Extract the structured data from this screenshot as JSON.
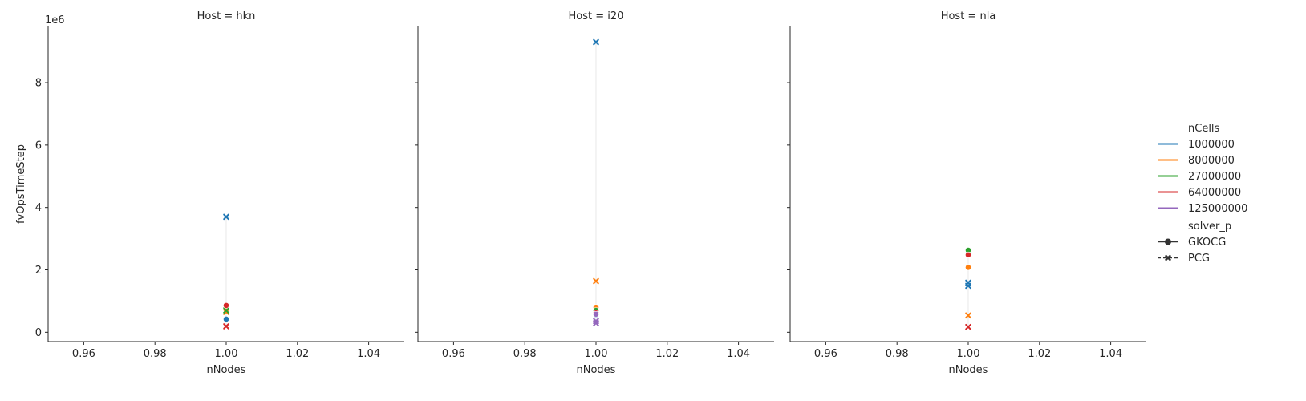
{
  "chart_data": {
    "type": "scatter",
    "x_label": "nNodes",
    "y_label": "fvOpsTimeStep",
    "y_offset_text": "1e6",
    "xlim": [
      0.95,
      1.05
    ],
    "ylim": [
      -300000,
      9800000
    ],
    "x_ticks": [
      0.96,
      0.98,
      1.0,
      1.02,
      1.04
    ],
    "x_tick_labels": [
      "0.96",
      "0.98",
      "1.00",
      "1.02",
      "1.04"
    ],
    "y_ticks": [
      0,
      2000000,
      4000000,
      6000000,
      8000000
    ],
    "y_tick_labels": [
      "0",
      "2",
      "4",
      "6",
      "8"
    ],
    "series_colors": {
      "1000000": "#1f77b4",
      "8000000": "#ff7f0e",
      "27000000": "#2ca02c",
      "64000000": "#d62728",
      "125000000": "#9467bd"
    },
    "panels": [
      {
        "title": "Host = hkn",
        "points": [
          {
            "nCells": "1000000",
            "solver": "PCG",
            "x": 1.0,
            "y": 3700000
          },
          {
            "nCells": "1000000",
            "solver": "GKOCG",
            "x": 1.0,
            "y": 420000
          },
          {
            "nCells": "8000000",
            "solver": "GKOCG",
            "x": 1.0,
            "y": 800000
          },
          {
            "nCells": "8000000",
            "solver": "PCG",
            "x": 1.0,
            "y": 650000
          },
          {
            "nCells": "27000000",
            "solver": "PCG",
            "x": 1.0,
            "y": 700000
          },
          {
            "nCells": "64000000",
            "solver": "GKOCG",
            "x": 1.0,
            "y": 860000
          },
          {
            "nCells": "64000000",
            "solver": "PCG",
            "x": 1.0,
            "y": 190000
          }
        ]
      },
      {
        "title": "Host = i20",
        "points": [
          {
            "nCells": "1000000",
            "solver": "PCG",
            "x": 1.0,
            "y": 9300000
          },
          {
            "nCells": "8000000",
            "solver": "PCG",
            "x": 1.0,
            "y": 1640000
          },
          {
            "nCells": "8000000",
            "solver": "GKOCG",
            "x": 1.0,
            "y": 800000
          },
          {
            "nCells": "27000000",
            "solver": "GKOCG",
            "x": 1.0,
            "y": 700000
          },
          {
            "nCells": "64000000",
            "solver": "GKOCG",
            "x": 1.0,
            "y": 620000
          },
          {
            "nCells": "1000000",
            "solver": "GKOCG",
            "x": 1.0,
            "y": 560000
          },
          {
            "nCells": "125000000",
            "solver": "GKOCG",
            "x": 1.0,
            "y": 580000
          },
          {
            "nCells": "125000000",
            "solver": "PCG",
            "x": 1.0,
            "y": 360000
          },
          {
            "nCells": "125000000",
            "solver": "PCG",
            "x": 1.0,
            "y": 290000
          }
        ]
      },
      {
        "title": "Host = nla",
        "points": [
          {
            "nCells": "27000000",
            "solver": "GKOCG",
            "x": 1.0,
            "y": 2630000
          },
          {
            "nCells": "64000000",
            "solver": "GKOCG",
            "x": 1.0,
            "y": 2480000
          },
          {
            "nCells": "8000000",
            "solver": "GKOCG",
            "x": 1.0,
            "y": 2080000
          },
          {
            "nCells": "1000000",
            "solver": "PCG",
            "x": 1.0,
            "y": 1590000
          },
          {
            "nCells": "1000000",
            "solver": "PCG",
            "x": 1.0,
            "y": 1490000
          },
          {
            "nCells": "8000000",
            "solver": "PCG",
            "x": 1.0,
            "y": 540000
          },
          {
            "nCells": "64000000",
            "solver": "PCG",
            "x": 1.0,
            "y": 170000
          }
        ]
      }
    ],
    "legend": {
      "position": "right",
      "hue_title": "nCells",
      "hue_entries": [
        "1000000",
        "8000000",
        "27000000",
        "64000000",
        "125000000"
      ],
      "style_title": "solver_p",
      "style_entries": [
        {
          "label": "GKOCG",
          "marker": "circle"
        },
        {
          "label": "PCG",
          "marker": "x"
        }
      ]
    }
  }
}
